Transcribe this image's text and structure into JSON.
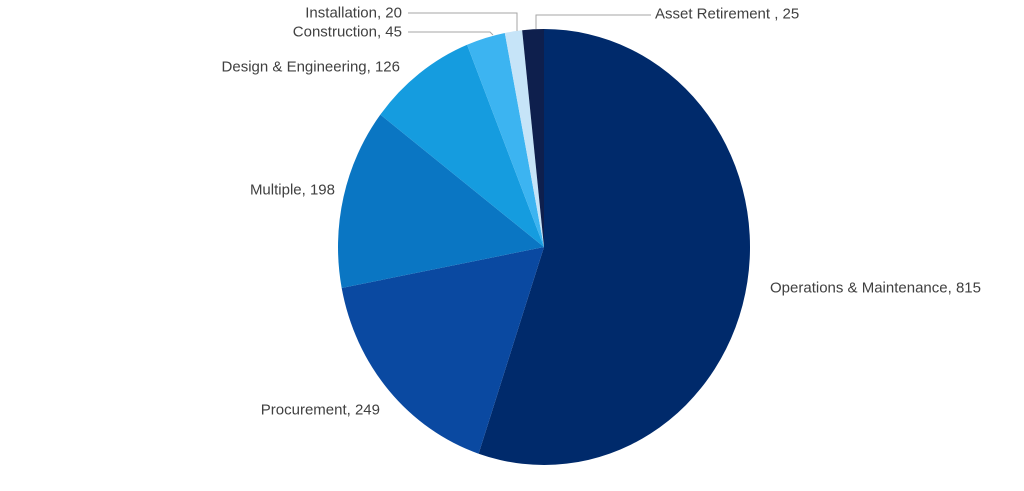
{
  "chart_data": {
    "type": "pie",
    "title": "",
    "total": 1478,
    "start_angle_deg": 0,
    "direction": "clockwise",
    "legend": "none",
    "labels_style": "category name and value, placed outside slices",
    "background": "#FFFFFF",
    "label_color": "#404040",
    "leader_line_color": "#A6A6A6",
    "slices": [
      {
        "name": "Operations & Maintenance",
        "value": 815,
        "display": "Operations & Maintenance, 815",
        "color": "#002A6B"
      },
      {
        "name": "Procurement",
        "value": 249,
        "display": "Procurement, 249",
        "color": "#0A49A1"
      },
      {
        "name": "Multiple",
        "value": 198,
        "display": "Multiple, 198",
        "color": "#0A76C3"
      },
      {
        "name": "Design & Engineering",
        "value": 126,
        "display": "Design & Engineering, 126",
        "color": "#159CDF"
      },
      {
        "name": "Construction",
        "value": 45,
        "display": "Construction, 45",
        "color": "#3CB4F1"
      },
      {
        "name": "Installation",
        "value": 20,
        "display": "Installation, 20",
        "color": "#C6E4F8"
      },
      {
        "name": "Asset Retirement",
        "value": 25,
        "display": "Asset Retirement , 25",
        "color": "#0E1F4D"
      }
    ]
  }
}
